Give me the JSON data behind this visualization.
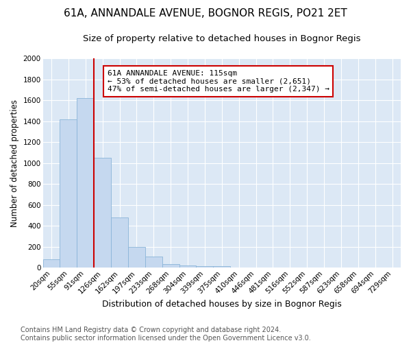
{
  "title": "61A, ANNANDALE AVENUE, BOGNOR REGIS, PO21 2ET",
  "subtitle": "Size of property relative to detached houses in Bognor Regis",
  "xlabel": "Distribution of detached houses by size in Bognor Regis",
  "ylabel": "Number of detached properties",
  "bin_labels": [
    "20sqm",
    "55sqm",
    "91sqm",
    "126sqm",
    "162sqm",
    "197sqm",
    "233sqm",
    "268sqm",
    "304sqm",
    "339sqm",
    "375sqm",
    "410sqm",
    "446sqm",
    "481sqm",
    "516sqm",
    "552sqm",
    "587sqm",
    "623sqm",
    "658sqm",
    "694sqm",
    "729sqm"
  ],
  "bar_values": [
    80,
    1420,
    1620,
    1050,
    480,
    200,
    105,
    35,
    20,
    15,
    15,
    0,
    0,
    0,
    0,
    0,
    0,
    0,
    0,
    0,
    0
  ],
  "bar_color": "#c5d8ef",
  "bar_edge_color": "#8ab4d8",
  "annotation_text": "61A ANNANDALE AVENUE: 115sqm\n← 53% of detached houses are smaller (2,651)\n47% of semi-detached houses are larger (2,347) →",
  "annotation_box_color": "#ffffff",
  "annotation_box_edge": "#cc0000",
  "vline_color": "#cc0000",
  "ylim": [
    0,
    2000
  ],
  "yticks": [
    0,
    200,
    400,
    600,
    800,
    1000,
    1200,
    1400,
    1600,
    1800,
    2000
  ],
  "background_color": "#dce8f5",
  "grid_color": "#ffffff",
  "footer_text": "Contains HM Land Registry data © Crown copyright and database right 2024.\nContains public sector information licensed under the Open Government Licence v3.0.",
  "title_fontsize": 11,
  "subtitle_fontsize": 9.5,
  "xlabel_fontsize": 9,
  "ylabel_fontsize": 8.5,
  "tick_fontsize": 7.5,
  "footer_fontsize": 7,
  "annot_fontsize": 8
}
